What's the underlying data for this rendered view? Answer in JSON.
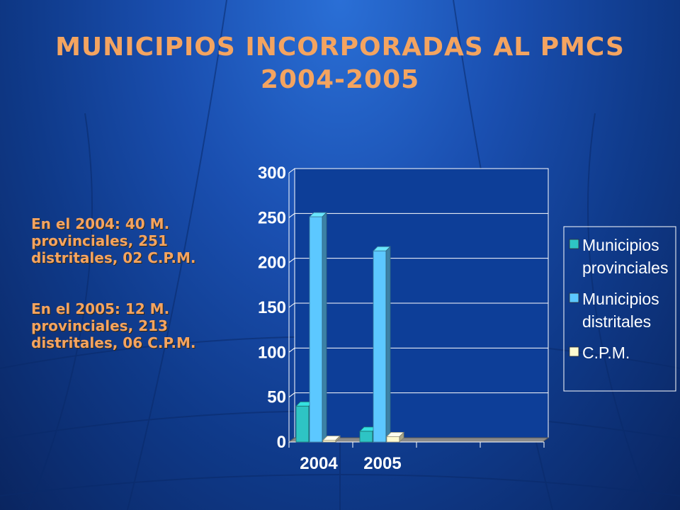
{
  "slide": {
    "title_line1": "MUNICIPIOS INCORPORADAS AL PMCS",
    "title_line2": "2004-2005",
    "note_2004": "En el 2004: 40 M. provinciales, 251 distritales, 02 C.P.M.",
    "note_2005": "En el 2005: 12 M. provinciales, 213 distritales, 06 C.P.M."
  },
  "colors": {
    "title_text": "#f4a460",
    "series_provinciales": "#2ec4c4",
    "series_distritales": "#5cc8ff",
    "series_cpm": "#fffbd0",
    "plot_background": "#0d3e98"
  },
  "chart_data": {
    "type": "bar",
    "title": "",
    "xlabel": "",
    "ylabel": "",
    "categories": [
      "2004",
      "2005"
    ],
    "series": [
      {
        "name": "Municipios provinciales",
        "values": [
          40,
          12
        ]
      },
      {
        "name": "Municipios distritales",
        "values": [
          251,
          213
        ]
      },
      {
        "name": "C.P.M.",
        "values": [
          2,
          6
        ]
      }
    ],
    "ylim": [
      0,
      300
    ],
    "yticks": [
      0,
      50,
      100,
      150,
      200,
      250,
      300
    ],
    "grid": true,
    "legend": "right",
    "style": "3d-column"
  }
}
